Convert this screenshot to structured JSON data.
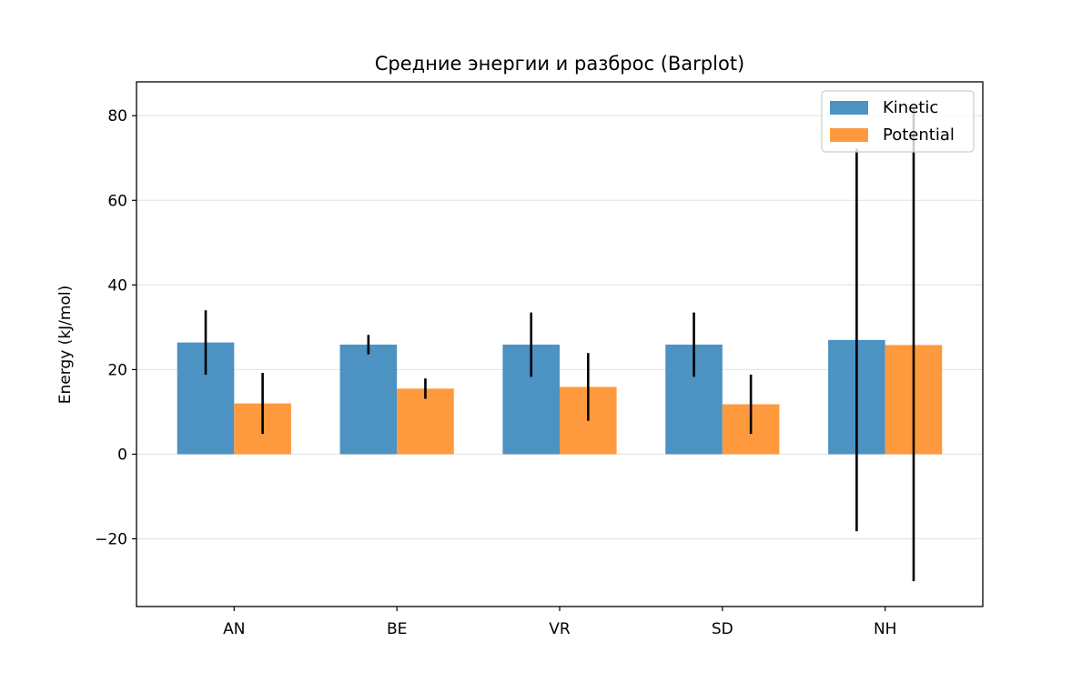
{
  "chart_data": {
    "type": "bar",
    "title": "Средние энергии и разброс (Barplot)",
    "xlabel": "",
    "ylabel": "Energy (kJ/mol)",
    "categories": [
      "AN",
      "BE",
      "VR",
      "SD",
      "NH"
    ],
    "series": [
      {
        "name": "Kinetic",
        "color": "#4c92c3",
        "values": [
          26.4,
          25.9,
          25.9,
          25.9,
          27.0
        ],
        "errors": [
          7.6,
          2.3,
          7.6,
          7.6,
          45.2
        ]
      },
      {
        "name": "Potential",
        "color": "#ff993e",
        "values": [
          12.0,
          15.5,
          15.9,
          11.8,
          25.8
        ],
        "errors": [
          7.2,
          2.4,
          8.0,
          7.0,
          55.8
        ]
      }
    ],
    "ylim": [
      -36,
      88
    ],
    "yticks": [
      -20,
      0,
      20,
      40,
      60,
      80
    ],
    "ytick_labels": [
      "−20",
      "0",
      "20",
      "40",
      "60",
      "80"
    ],
    "grid": "y",
    "legend_position": "upper right"
  }
}
